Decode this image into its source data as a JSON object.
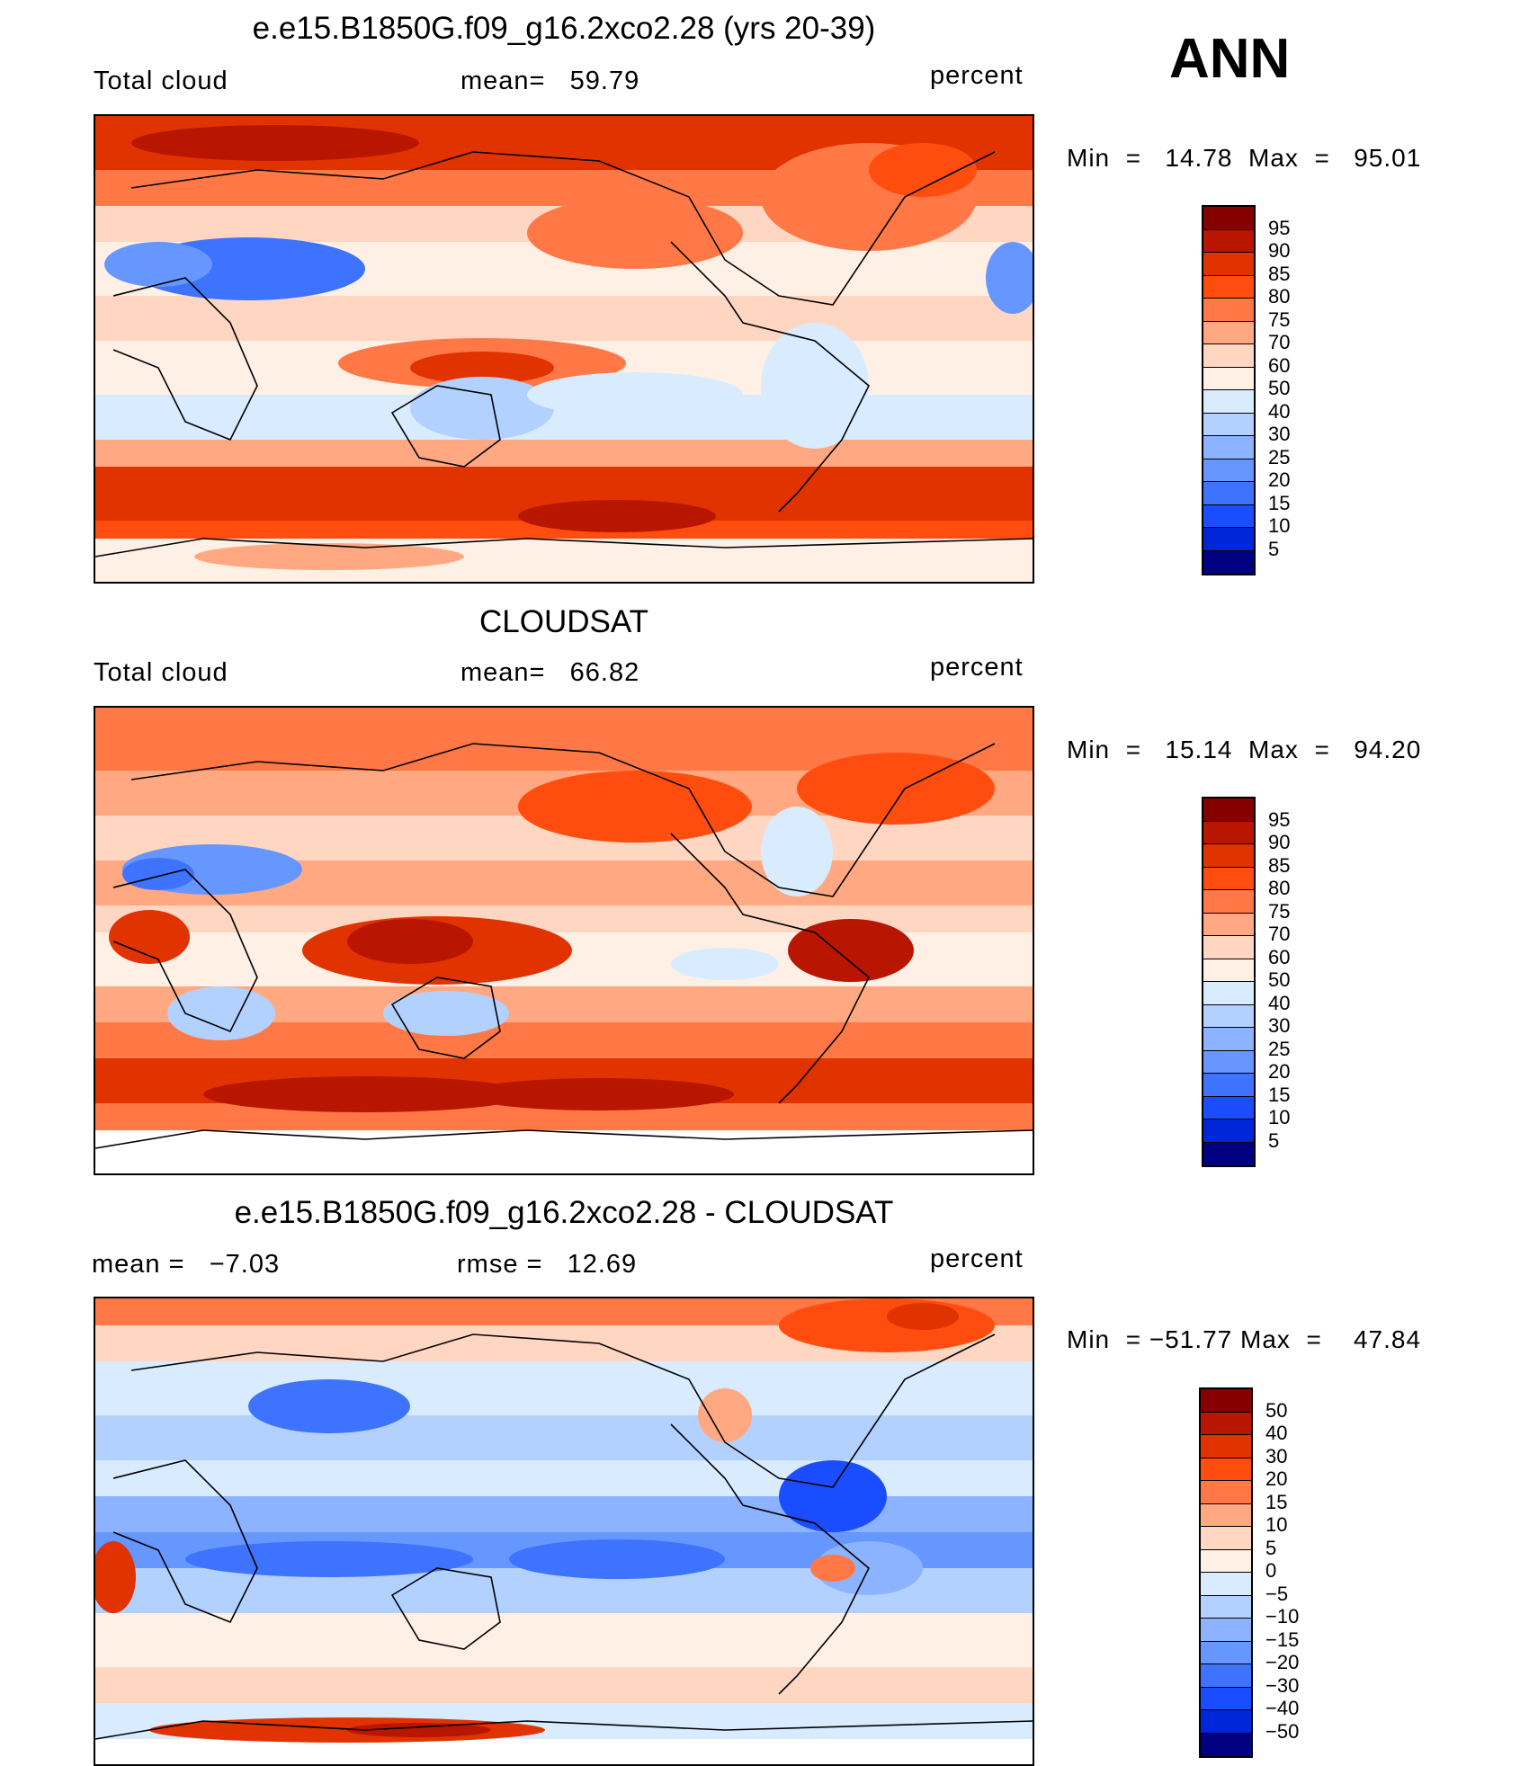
{
  "season": "ANN",
  "colors": {
    "seq": [
      "#870000",
      "#b81600",
      "#e03300",
      "#ff4d0f",
      "#ff7845",
      "#ffa882",
      "#ffd6c2",
      "#fff0e6",
      "#d9ebff",
      "#b3d1ff",
      "#8cb3ff",
      "#6696ff",
      "#3d73ff",
      "#1a4dff",
      "#0026d9",
      "#000080"
    ],
    "diff": [
      "#870000",
      "#b81600",
      "#e03300",
      "#ff4d0f",
      "#ff7845",
      "#ffa882",
      "#ffd6c2",
      "#fff0e6",
      "#d9ebff",
      "#b3d1ff",
      "#8cb3ff",
      "#6696ff",
      "#3d73ff",
      "#1a4dff",
      "#0026d9",
      "#000080"
    ]
  },
  "panels": [
    {
      "title": "e.e15.B1850G.f09_g16.2xco2.28 (yrs 20-39)",
      "left_label": "Total cloud",
      "center_label": "mean=",
      "center_value": "59.79",
      "units": "percent",
      "min_label": "Min",
      "eq": "=",
      "min_value": "14.78",
      "max_label": "Max",
      "max_value": "95.01",
      "levels": [
        "95",
        "90",
        "85",
        "80",
        "75",
        "70",
        "60",
        "50",
        "40",
        "30",
        "25",
        "20",
        "15",
        "10",
        "5"
      ]
    },
    {
      "title": "CLOUDSAT",
      "left_label": "Total cloud",
      "center_label": "mean=",
      "center_value": "66.82",
      "units": "percent",
      "min_label": "Min",
      "eq": "=",
      "min_value": "15.14",
      "max_label": "Max",
      "max_value": "94.20",
      "levels": [
        "95",
        "90",
        "85",
        "80",
        "75",
        "70",
        "60",
        "50",
        "40",
        "30",
        "25",
        "20",
        "15",
        "10",
        "5"
      ]
    },
    {
      "title": "e.e15.B1850G.f09_g16.2xco2.28 - CLOUDSAT",
      "left_label": "mean =",
      "left_value": "−7.03",
      "center_label": "rmse =",
      "center_value": "12.69",
      "units": "percent",
      "min_label": "Min",
      "eq": "=",
      "min_value": "−51.77",
      "max_label": "Max",
      "max_value": "47.84",
      "levels": [
        "50",
        "40",
        "30",
        "20",
        "15",
        "10",
        "5",
        "0",
        "−5",
        "−10",
        "−15",
        "−20",
        "−30",
        "−40",
        "−50"
      ]
    }
  ]
}
